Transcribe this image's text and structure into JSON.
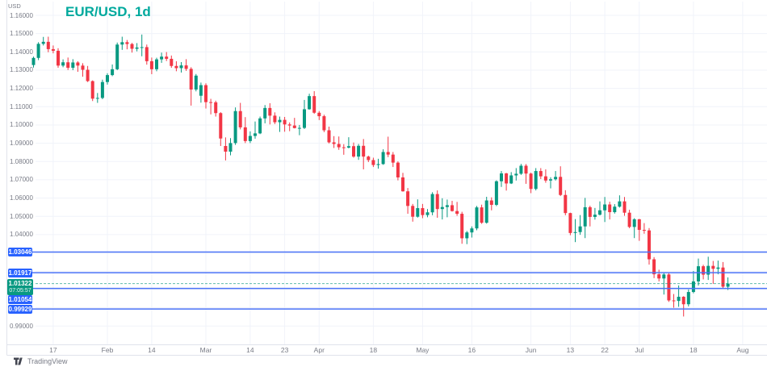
{
  "header": {
    "axis_currency": "USD",
    "title": "EUR/USD, 1d"
  },
  "watermark": {
    "brand": "TradingView"
  },
  "colors": {
    "up_candle": "#089981",
    "down_candle": "#f23645",
    "level_line": "#4a72f7",
    "level_pill": "#2962ff",
    "current_price": "#089981",
    "title_text": "#00a99d",
    "axis_text": "#787b86",
    "grid": "#f0f3fa",
    "border": "#e0e3eb"
  },
  "levels": [
    {
      "label": "1.03046",
      "value": 1.03046
    },
    {
      "label": "1.01917",
      "value": 1.01917
    },
    {
      "label": "1.01054",
      "value": 1.01054
    },
    {
      "label": "0.99929",
      "value": 0.99929
    }
  ],
  "current_price": {
    "label": "1.01322",
    "value": 1.01322,
    "countdown": "07:05:57"
  },
  "chart_data": {
    "type": "candlestick",
    "title": "EUR/USD, 1d",
    "symbol": "EUR/USD",
    "interval": "1d",
    "ylim": [
      0.99,
      1.16
    ],
    "y_tick_step": 0.01,
    "grid": true,
    "y_tick_labels": [
      "1.16000",
      "1.15000",
      "1.14000",
      "1.13000",
      "1.12000",
      "1.11000",
      "1.10000",
      "1.09000",
      "1.08000",
      "1.07000",
      "1.06000",
      "1.05000",
      "1.04000",
      "0.99000"
    ],
    "x_ticks": [
      {
        "label": "17",
        "index": 4
      },
      {
        "label": "Feb",
        "index": 15
      },
      {
        "label": "14",
        "index": 24
      },
      {
        "label": "Mar",
        "index": 35
      },
      {
        "label": "14",
        "index": 44
      },
      {
        "label": "23",
        "index": 51
      },
      {
        "label": "Apr",
        "index": 58
      },
      {
        "label": "18",
        "index": 69
      },
      {
        "label": "May",
        "index": 79
      },
      {
        "label": "16",
        "index": 89
      },
      {
        "label": "Jun",
        "index": 101
      },
      {
        "label": "13",
        "index": 109
      },
      {
        "label": "22",
        "index": 116
      },
      {
        "label": "Jul",
        "index": 123
      },
      {
        "label": "18",
        "index": 134
      },
      {
        "label": "Aug",
        "index": 144
      }
    ],
    "columns": [
      "date",
      "open",
      "high",
      "low",
      "close"
    ],
    "candles": [
      [
        "Jan 11",
        1.1328,
        1.1374,
        1.1314,
        1.1367
      ],
      [
        "Jan 12",
        1.1367,
        1.1453,
        1.1355,
        1.1444
      ],
      [
        "Jan 13",
        1.1444,
        1.1482,
        1.1435,
        1.1455
      ],
      [
        "Jan 14",
        1.1455,
        1.1483,
        1.1398,
        1.1415
      ],
      [
        "Jan 17",
        1.1415,
        1.1435,
        1.1392,
        1.1406
      ],
      [
        "Jan 18",
        1.1406,
        1.142,
        1.1313,
        1.1325
      ],
      [
        "Jan 19",
        1.1325,
        1.1359,
        1.1316,
        1.1343
      ],
      [
        "Jan 20",
        1.1343,
        1.1369,
        1.1301,
        1.1313
      ],
      [
        "Jan 21",
        1.1313,
        1.136,
        1.13,
        1.1342
      ],
      [
        "Jan 24",
        1.1342,
        1.1349,
        1.1291,
        1.1325
      ],
      [
        "Jan 25",
        1.1325,
        1.1338,
        1.1264,
        1.1302
      ],
      [
        "Jan 26",
        1.1302,
        1.1323,
        1.1235,
        1.124
      ],
      [
        "Jan 27",
        1.124,
        1.1244,
        1.1131,
        1.1144
      ],
      [
        "Jan 28",
        1.1144,
        1.1175,
        1.1121,
        1.1148
      ],
      [
        "Jan 31",
        1.1148,
        1.1248,
        1.1141,
        1.1235
      ],
      [
        "Feb 1",
        1.1235,
        1.1283,
        1.1221,
        1.1273
      ],
      [
        "Feb 2",
        1.1273,
        1.1331,
        1.1267,
        1.1305
      ],
      [
        "Feb 3",
        1.1305,
        1.1451,
        1.13,
        1.144
      ],
      [
        "Feb 4",
        1.144,
        1.1483,
        1.1411,
        1.1453
      ],
      [
        "Feb 7",
        1.1453,
        1.1465,
        1.1414,
        1.1443
      ],
      [
        "Feb 8",
        1.1443,
        1.1449,
        1.1396,
        1.1417
      ],
      [
        "Feb 9",
        1.1417,
        1.1448,
        1.1403,
        1.1424
      ],
      [
        "Feb 10",
        1.1424,
        1.1495,
        1.1376,
        1.1426
      ],
      [
        "Feb 11",
        1.1426,
        1.144,
        1.133,
        1.1349
      ],
      [
        "Feb 14",
        1.1349,
        1.1369,
        1.1278,
        1.1305
      ],
      [
        "Feb 15",
        1.1305,
        1.1368,
        1.1294,
        1.1359
      ],
      [
        "Feb 16",
        1.1359,
        1.1396,
        1.134,
        1.1374
      ],
      [
        "Feb 17",
        1.1374,
        1.1399,
        1.135,
        1.1362
      ],
      [
        "Feb 18",
        1.1362,
        1.138,
        1.1313,
        1.1323
      ],
      [
        "Feb 21",
        1.1323,
        1.1349,
        1.1294,
        1.1311
      ],
      [
        "Feb 22",
        1.1311,
        1.1344,
        1.1287,
        1.1326
      ],
      [
        "Feb 23",
        1.1326,
        1.136,
        1.1296,
        1.1307
      ],
      [
        "Feb 24",
        1.1307,
        1.1316,
        1.1106,
        1.1194
      ],
      [
        "Feb 25",
        1.1194,
        1.1279,
        1.1184,
        1.127
      ],
      [
        "Feb 28",
        1.116,
        1.1232,
        1.1122,
        1.1218
      ],
      [
        "Mar 1",
        1.1218,
        1.1228,
        1.109,
        1.1125
      ],
      [
        "Mar 2",
        1.1125,
        1.1143,
        1.1058,
        1.1124
      ],
      [
        "Mar 3",
        1.1124,
        1.1133,
        1.1046,
        1.1065
      ],
      [
        "Mar 4",
        1.1065,
        1.107,
        1.0885,
        1.0926
      ],
      [
        "Mar 7",
        1.0885,
        1.0932,
        1.0806,
        1.0854
      ],
      [
        "Mar 8",
        1.0854,
        1.0928,
        1.0834,
        1.0901
      ],
      [
        "Mar 9",
        1.0901,
        1.1096,
        1.0891,
        1.1076
      ],
      [
        "Mar 10",
        1.1076,
        1.1121,
        1.0976,
        1.0987
      ],
      [
        "Mar 11",
        1.0987,
        1.1043,
        1.0901,
        1.0912
      ],
      [
        "Mar 14",
        1.0912,
        1.0965,
        1.0901,
        1.094
      ],
      [
        "Mar 15",
        1.094,
        1.1019,
        1.0925,
        1.0954
      ],
      [
        "Mar 16",
        1.0954,
        1.1046,
        1.095,
        1.1036
      ],
      [
        "Mar 17",
        1.1036,
        1.1109,
        1.1009,
        1.1093
      ],
      [
        "Mar 18",
        1.1093,
        1.1119,
        1.1003,
        1.1051
      ],
      [
        "Mar 21",
        1.1051,
        1.1069,
        1.1005,
        1.1015
      ],
      [
        "Mar 22",
        1.1015,
        1.1046,
        1.0962,
        1.1028
      ],
      [
        "Mar 23",
        1.1028,
        1.1044,
        1.0963,
        1.1003
      ],
      [
        "Mar 24",
        1.1003,
        1.1014,
        1.0966,
        1.0997
      ],
      [
        "Mar 25",
        1.0997,
        1.1039,
        1.0981,
        1.0983
      ],
      [
        "Mar 28",
        1.0983,
        1.1,
        1.0944,
        1.0984
      ],
      [
        "Mar 29",
        1.0984,
        1.1137,
        1.0978,
        1.1086
      ],
      [
        "Mar 30",
        1.1086,
        1.1171,
        1.1084,
        1.1158
      ],
      [
        "Mar 31",
        1.1158,
        1.1185,
        1.1061,
        1.1067
      ],
      [
        "Apr 1",
        1.1067,
        1.1076,
        1.1027,
        1.1048
      ],
      [
        "Apr 4",
        1.1048,
        1.1056,
        1.0961,
        1.0971
      ],
      [
        "Apr 5",
        1.0971,
        1.0991,
        1.0899,
        1.0905
      ],
      [
        "Apr 6",
        1.0905,
        1.0939,
        1.0874,
        1.0896
      ],
      [
        "Apr 7",
        1.0896,
        1.0937,
        1.0864,
        1.0878
      ],
      [
        "Apr 8",
        1.0878,
        1.0895,
        1.0837,
        1.0876
      ],
      [
        "Apr 11",
        1.0876,
        1.0933,
        1.0872,
        1.0884
      ],
      [
        "Apr 12",
        1.0884,
        1.0904,
        1.0821,
        1.0827
      ],
      [
        "Apr 13",
        1.0827,
        1.0896,
        1.0809,
        1.0886
      ],
      [
        "Apr 14",
        1.0886,
        1.0923,
        1.0757,
        1.0827
      ],
      [
        "Apr 15",
        1.0827,
        1.0832,
        1.0797,
        1.0808
      ],
      [
        "Apr 18",
        1.0808,
        1.0821,
        1.077,
        1.0781
      ],
      [
        "Apr 19",
        1.0781,
        1.0815,
        1.0761,
        1.0786
      ],
      [
        "Apr 20",
        1.0786,
        1.0867,
        1.0782,
        1.0852
      ],
      [
        "Apr 21",
        1.0852,
        1.0936,
        1.0824,
        1.0838
      ],
      [
        "Apr 22",
        1.0838,
        1.0852,
        1.077,
        1.0794
      ],
      [
        "Apr 25",
        1.0794,
        1.0801,
        1.0697,
        1.0713
      ],
      [
        "Apr 26",
        1.0713,
        1.0738,
        1.0635,
        1.0637
      ],
      [
        "Apr 27",
        1.0637,
        1.0655,
        1.0514,
        1.0557
      ],
      [
        "Apr 28",
        1.0557,
        1.0568,
        1.0471,
        1.0498
      ],
      [
        "Apr 29",
        1.0498,
        1.0593,
        1.0493,
        1.0545
      ],
      [
        "May 2",
        1.0545,
        1.0568,
        1.049,
        1.0507
      ],
      [
        "May 3",
        1.0507,
        1.054,
        1.0495,
        1.0522
      ],
      [
        "May 4",
        1.0522,
        1.0632,
        1.0506,
        1.0622
      ],
      [
        "May 5",
        1.0622,
        1.0642,
        1.0492,
        1.054
      ],
      [
        "May 6",
        1.054,
        1.0599,
        1.0483,
        1.0551
      ],
      [
        "May 9",
        1.0551,
        1.0592,
        1.0495,
        1.0561
      ],
      [
        "May 10",
        1.0561,
        1.0585,
        1.0526,
        1.0529
      ],
      [
        "May 11",
        1.0529,
        1.0579,
        1.0503,
        1.0514
      ],
      [
        "May 12",
        1.0514,
        1.0525,
        1.035,
        1.038
      ],
      [
        "May 13",
        1.038,
        1.042,
        1.0348,
        1.0412
      ],
      [
        "May 16",
        1.0412,
        1.0445,
        1.0384,
        1.0434
      ],
      [
        "May 17",
        1.0434,
        1.0557,
        1.0424,
        1.0549
      ],
      [
        "May 18",
        1.0549,
        1.0564,
        1.0459,
        1.0465
      ],
      [
        "May 19",
        1.0465,
        1.0607,
        1.046,
        1.0587
      ],
      [
        "May 20",
        1.0587,
        1.0604,
        1.0533,
        1.0563
      ],
      [
        "May 23",
        1.0563,
        1.0697,
        1.0556,
        1.0692
      ],
      [
        "May 24",
        1.0692,
        1.0748,
        1.0661,
        1.0735
      ],
      [
        "May 25",
        1.0735,
        1.0738,
        1.0641,
        1.068
      ],
      [
        "May 26",
        1.068,
        1.0742,
        1.0677,
        1.0724
      ],
      [
        "May 27",
        1.0724,
        1.0764,
        1.0696,
        1.0733
      ],
      [
        "May 30",
        1.0733,
        1.0787,
        1.0727,
        1.0777
      ],
      [
        "May 31",
        1.0777,
        1.0786,
        1.0678,
        1.0734
      ],
      [
        "Jun 1",
        1.0734,
        1.0739,
        1.0627,
        1.065
      ],
      [
        "Jun 2",
        1.065,
        1.0764,
        1.0642,
        1.0748
      ],
      [
        "Jun 3",
        1.0748,
        1.0764,
        1.0704,
        1.0719
      ],
      [
        "Jun 6",
        1.0719,
        1.0757,
        1.0684,
        1.0696
      ],
      [
        "Jun 7",
        1.0696,
        1.0714,
        1.0653,
        1.0703
      ],
      [
        "Jun 8",
        1.0703,
        1.0748,
        1.0696,
        1.0716
      ],
      [
        "Jun 9",
        1.0716,
        1.0774,
        1.0611,
        1.0617
      ],
      [
        "Jun 10",
        1.0617,
        1.0643,
        1.0506,
        1.0518
      ],
      [
        "Jun 13",
        1.0518,
        1.052,
        1.0397,
        1.0409
      ],
      [
        "Jun 14",
        1.0409,
        1.0485,
        1.0359,
        1.0414
      ],
      [
        "Jun 15",
        1.0414,
        1.0507,
        1.0399,
        1.0445
      ],
      [
        "Jun 16",
        1.0445,
        1.0601,
        1.0381,
        1.055
      ],
      [
        "Jun 17",
        1.055,
        1.0558,
        1.0445,
        1.0497
      ],
      [
        "Jun 20",
        1.0497,
        1.0546,
        1.0482,
        1.0509
      ],
      [
        "Jun 21",
        1.0509,
        1.0582,
        1.0505,
        1.0533
      ],
      [
        "Jun 22",
        1.0533,
        1.0606,
        1.0469,
        1.0565
      ],
      [
        "Jun 23",
        1.0565,
        1.058,
        1.0483,
        1.0523
      ],
      [
        "Jun 24",
        1.0523,
        1.0567,
        1.0515,
        1.0553
      ],
      [
        "Jun 27",
        1.0553,
        1.0615,
        1.0548,
        1.0582
      ],
      [
        "Jun 28",
        1.0582,
        1.0606,
        1.0503,
        1.052
      ],
      [
        "Jun 29",
        1.052,
        1.0536,
        1.0435,
        1.0442
      ],
      [
        "Jun 30",
        1.0442,
        1.049,
        1.0381,
        1.0484
      ],
      [
        "Jul 1",
        1.0484,
        1.0486,
        1.0366,
        1.0426
      ],
      [
        "Jul 4",
        1.0426,
        1.0463,
        1.0405,
        1.0423
      ],
      [
        "Jul 5",
        1.0423,
        1.0436,
        1.0236,
        1.0265
      ],
      [
        "Jul 6",
        1.0265,
        1.0277,
        1.0162,
        1.0183
      ],
      [
        "Jul 7",
        1.0183,
        1.0208,
        1.0144,
        1.016
      ],
      [
        "Jul 8",
        1.016,
        1.0192,
        1.0072,
        1.0182
      ],
      [
        "Jul 11",
        1.0182,
        1.0193,
        1.0032,
        1.004
      ],
      [
        "Jul 12",
        1.004,
        1.0075,
        1.0,
        1.0037
      ],
      [
        "Jul 13",
        1.0037,
        1.0122,
        1.0005,
        1.006
      ],
      [
        "Jul 14",
        1.006,
        1.0063,
        0.9952,
        1.0019
      ],
      [
        "Jul 15",
        1.0019,
        1.01,
        1.0007,
        1.0086
      ],
      [
        "Jul 18",
        1.0086,
        1.0201,
        1.0079,
        1.0144
      ],
      [
        "Jul 19",
        1.0144,
        1.0269,
        1.0121,
        1.0227
      ],
      [
        "Jul 20",
        1.0227,
        1.0235,
        1.0155,
        1.0181
      ],
      [
        "Jul 21",
        1.0181,
        1.0279,
        1.0152,
        1.0229
      ],
      [
        "Jul 22",
        1.0229,
        1.0256,
        1.0131,
        1.0213
      ],
      [
        "Jul 25",
        1.0213,
        1.0258,
        1.0183,
        1.022
      ],
      [
        "Jul 26",
        1.022,
        1.025,
        1.0108,
        1.0115
      ],
      [
        "Jul 27",
        1.0115,
        1.0166,
        1.0097,
        1.01322
      ]
    ]
  }
}
